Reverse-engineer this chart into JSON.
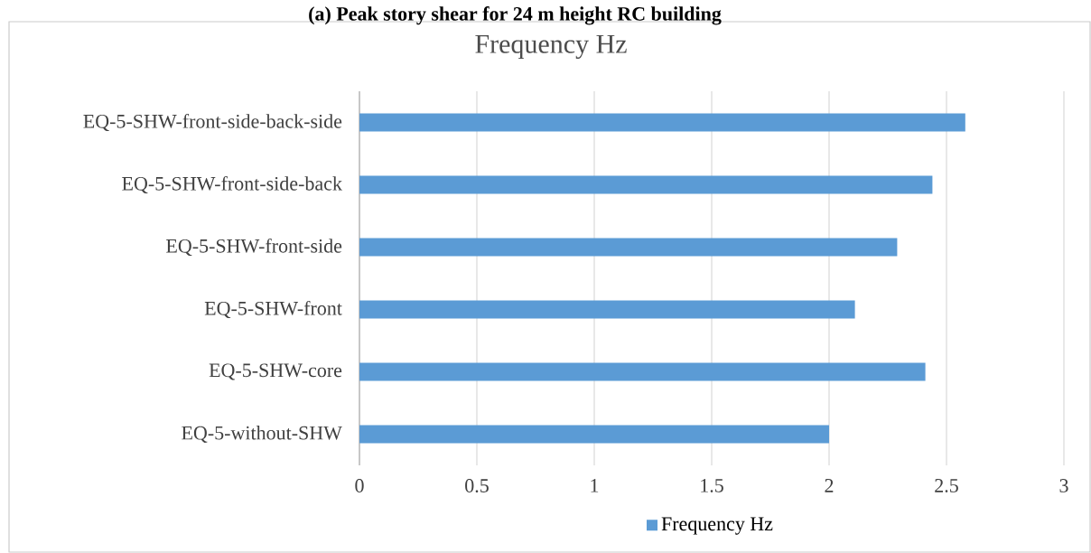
{
  "chart_data": {
    "type": "bar",
    "orientation": "horizontal",
    "title": "Frequency Hz",
    "annotations": [
      "(a) Peak story shear for 24 m height RC building"
    ],
    "categories": [
      "EQ-5-SHW-front-side-back-side",
      "EQ-5-SHW-front-side-back",
      "EQ-5-SHW-front-side",
      "EQ-5-SHW-front",
      "EQ-5-SHW-core",
      "EQ-5-without-SHW"
    ],
    "series": [
      {
        "name": "Frequency Hz",
        "color": "#5b9bd5",
        "values": [
          2.58,
          2.44,
          2.29,
          2.11,
          2.41,
          2.0
        ]
      }
    ],
    "xlim": [
      0,
      3
    ],
    "xticks": [
      0,
      0.5,
      1,
      1.5,
      2,
      2.5,
      3
    ],
    "grid": "x",
    "legend": "bottom"
  }
}
